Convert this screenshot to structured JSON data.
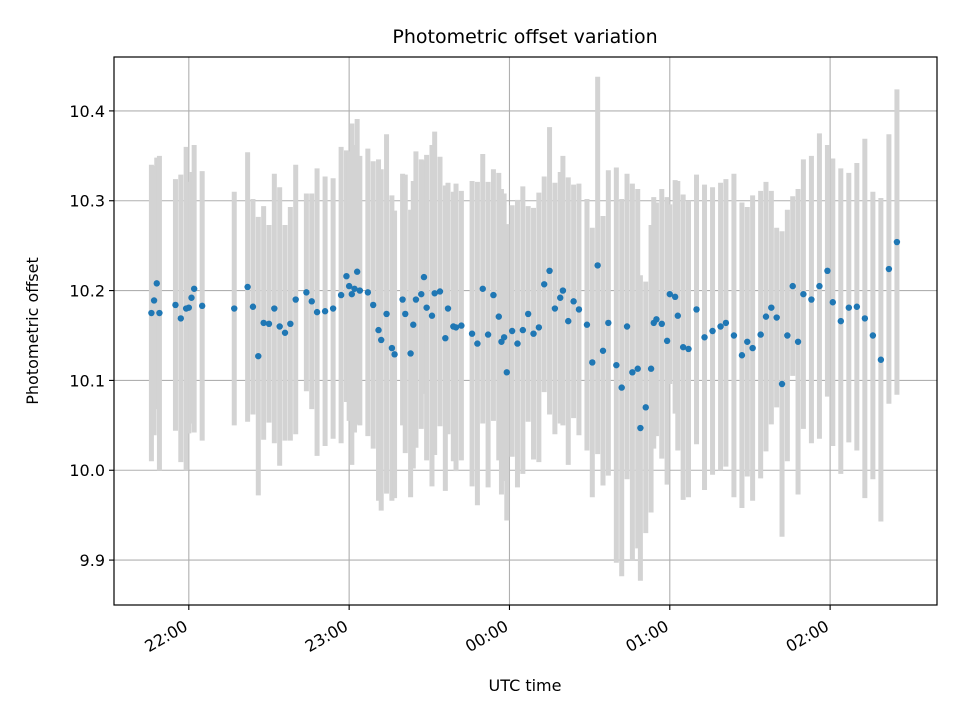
{
  "chart_data": {
    "type": "scatter",
    "title": "Photometric offset variation",
    "xlabel": "UTC time",
    "ylabel": "Photometric offset",
    "x_unit": "hours (UTC clock, values after midnight written as 24+)",
    "xlim": [
      "21:32",
      "26:40"
    ],
    "ylim": [
      9.85,
      10.46
    ],
    "x_ticks": [
      {
        "value": 22.0,
        "label": "22:00"
      },
      {
        "value": 23.0,
        "label": "23:00"
      },
      {
        "value": 24.0,
        "label": "00:00"
      },
      {
        "value": 25.0,
        "label": "01:00"
      },
      {
        "value": 26.0,
        "label": "02:00"
      }
    ],
    "y_ticks": [
      {
        "value": 9.9,
        "label": "9.9"
      },
      {
        "value": 10.0,
        "label": "10.0"
      },
      {
        "value": 10.1,
        "label": "10.1"
      },
      {
        "value": 10.2,
        "label": "10.2"
      },
      {
        "value": 10.3,
        "label": "10.3"
      },
      {
        "value": 10.4,
        "label": "10.4"
      }
    ],
    "grid": true,
    "colors": {
      "points": "#1f77b4",
      "error_bars": "#d3d3d3",
      "grid": "#b0b0b0"
    },
    "series": [
      {
        "x": [
          "21:46",
          "21:47",
          "21:48",
          "21:49",
          "21:55",
          "21:57",
          "21:59",
          "22:00",
          "22:01",
          "22:02",
          "22:05",
          "22:17",
          "22:22",
          "22:24",
          "22:26",
          "22:28",
          "22:30",
          "22:32",
          "22:34",
          "22:36",
          "22:38",
          "22:40",
          "22:44",
          "22:46",
          "22:48",
          "22:51",
          "22:54",
          "22:57",
          "22:59",
          "23:00",
          "23:01",
          "23:02",
          "23:03",
          "23:04",
          "23:07",
          "23:09",
          "23:11",
          "23:12",
          "23:14",
          "23:16",
          "23:17",
          "23:20",
          "23:21",
          "23:23",
          "23:24",
          "23:25",
          "23:27",
          "23:28",
          "23:29",
          "23:31",
          "23:32",
          "23:34",
          "23:36",
          "23:37",
          "23:39",
          "23:40",
          "23:42",
          "23:46",
          "23:48",
          "23:50",
          "23:52",
          "23:54",
          "23:56",
          "23:57",
          "23:58",
          "23:59",
          "00:01",
          "00:03",
          "00:05",
          "00:07",
          "00:09",
          "00:11",
          "00:13",
          "00:15",
          "00:17",
          "00:19",
          "00:20",
          "00:22",
          "00:24",
          "00:26",
          "00:29",
          "00:31",
          "00:33",
          "00:35",
          "00:37",
          "00:40",
          "00:42",
          "00:44",
          "00:46",
          "00:48",
          "00:49",
          "00:51",
          "00:53",
          "00:54",
          "00:55",
          "00:57",
          "00:59",
          "01:00",
          "01:02",
          "01:03",
          "01:05",
          "01:07",
          "01:10",
          "01:13",
          "01:16",
          "01:19",
          "01:21",
          "01:24",
          "01:27",
          "01:29",
          "01:31",
          "01:34",
          "01:36",
          "01:38",
          "01:40",
          "01:42",
          "01:44",
          "01:46",
          "01:48",
          "01:50",
          "01:53",
          "01:56",
          "01:59",
          "02:01",
          "02:04",
          "02:07",
          "02:10",
          "02:13",
          "02:16",
          "02:19",
          "02:22",
          "02:25"
        ],
        "y": [
          10.175,
          10.189,
          10.208,
          10.175,
          10.184,
          10.169,
          10.18,
          10.181,
          10.192,
          10.202,
          10.183,
          10.18,
          10.204,
          10.182,
          10.127,
          10.164,
          10.163,
          10.18,
          10.16,
          10.153,
          10.163,
          10.19,
          10.198,
          10.188,
          10.176,
          10.177,
          10.18,
          10.195,
          10.216,
          10.205,
          10.196,
          10.202,
          10.221,
          10.2,
          10.198,
          10.184,
          10.156,
          10.145,
          10.174,
          10.136,
          10.129,
          10.19,
          10.174,
          10.13,
          10.162,
          10.19,
          10.196,
          10.215,
          10.181,
          10.172,
          10.197,
          10.199,
          10.147,
          10.18,
          10.16,
          10.159,
          10.161,
          10.152,
          10.141,
          10.202,
          10.151,
          10.195,
          10.171,
          10.143,
          10.148,
          10.109,
          10.155,
          10.141,
          10.156,
          10.174,
          10.152,
          10.159,
          10.207,
          10.222,
          10.18,
          10.192,
          10.2,
          10.166,
          10.188,
          10.179,
          10.162,
          10.12,
          10.228,
          10.133,
          10.164,
          10.117,
          10.092,
          10.16,
          10.109,
          10.113,
          10.047,
          10.07,
          10.113,
          10.164,
          10.168,
          10.163,
          10.144,
          10.196,
          10.193,
          10.172,
          10.137,
          10.135,
          10.179,
          10.148,
          10.155,
          10.16,
          10.164,
          10.15,
          10.128,
          10.143,
          10.136,
          10.151,
          10.171,
          10.181,
          10.17,
          10.096,
          10.15,
          10.205,
          10.143,
          10.196,
          10.19,
          10.205,
          10.222,
          10.187,
          10.166,
          10.181,
          10.182,
          10.169,
          10.15,
          10.123,
          10.224,
          10.254
        ],
        "err": [
          0.165,
          0.15,
          0.14,
          0.175,
          0.14,
          0.16,
          0.18,
          0.14,
          0.14,
          0.16,
          0.15,
          0.13,
          0.15,
          0.12,
          0.155,
          0.13,
          0.11,
          0.15,
          0.155,
          0.12,
          0.13,
          0.15,
          0.11,
          0.12,
          0.16,
          0.15,
          0.145,
          0.165,
          0.14,
          0.15,
          0.19,
          0.16,
          0.17,
          0.15,
          0.16,
          0.16,
          0.19,
          0.19,
          0.2,
          0.17,
          0.16,
          0.14,
          0.155,
          0.16,
          0.16,
          0.165,
          0.15,
          0.13,
          0.17,
          0.19,
          0.18,
          0.15,
          0.17,
          0.14,
          0.15,
          0.16,
          0.15,
          0.17,
          0.18,
          0.15,
          0.17,
          0.14,
          0.16,
          0.17,
          0.16,
          0.165,
          0.14,
          0.16,
          0.16,
          0.12,
          0.14,
          0.15,
          0.12,
          0.16,
          0.14,
          0.14,
          0.15,
          0.16,
          0.13,
          0.14,
          0.14,
          0.15,
          0.21,
          0.15,
          0.17,
          0.22,
          0.21,
          0.17,
          0.21,
          0.2,
          0.17,
          0.14,
          0.16,
          0.14,
          0.13,
          0.15,
          0.16,
          0.1,
          0.13,
          0.15,
          0.17,
          0.165,
          0.15,
          0.17,
          0.16,
          0.16,
          0.16,
          0.18,
          0.17,
          0.15,
          0.17,
          0.16,
          0.15,
          0.13,
          0.1,
          0.17,
          0.14,
          0.1,
          0.17,
          0.15,
          0.16,
          0.17,
          0.14,
          0.16,
          0.17,
          0.15,
          0.16,
          0.2,
          0.16,
          0.18,
          0.15,
          0.17
        ],
        "x_offset_hours": 0
      }
    ]
  }
}
